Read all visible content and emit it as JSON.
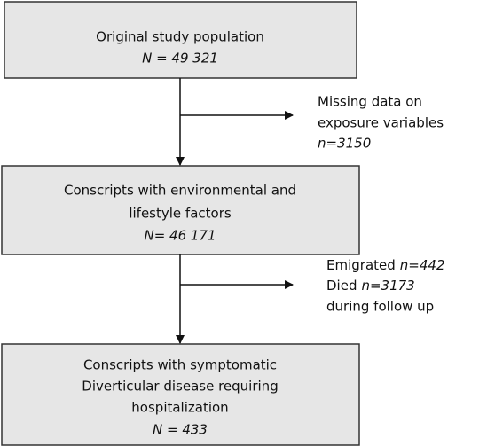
{
  "boxes": [
    {
      "lines": [
        "Original study population"
      ],
      "count": "N = 49 321"
    },
    {
      "lines": [
        "Conscripts with environmental and",
        "lifestyle factors"
      ],
      "count": "N= 46 171"
    },
    {
      "lines": [
        "Conscripts with symptomatic",
        "Diverticular disease requiring",
        "hospitalization"
      ],
      "count": "N = 433"
    }
  ],
  "exclusions": [
    {
      "lines": [
        "Missing data on",
        "exposure variables"
      ],
      "count": "n=3150"
    },
    {
      "items": [
        {
          "label": "Emigrated",
          "count": "n=442"
        },
        {
          "label": "Died",
          "count": "n=3173"
        }
      ],
      "note": "during follow up"
    }
  ]
}
